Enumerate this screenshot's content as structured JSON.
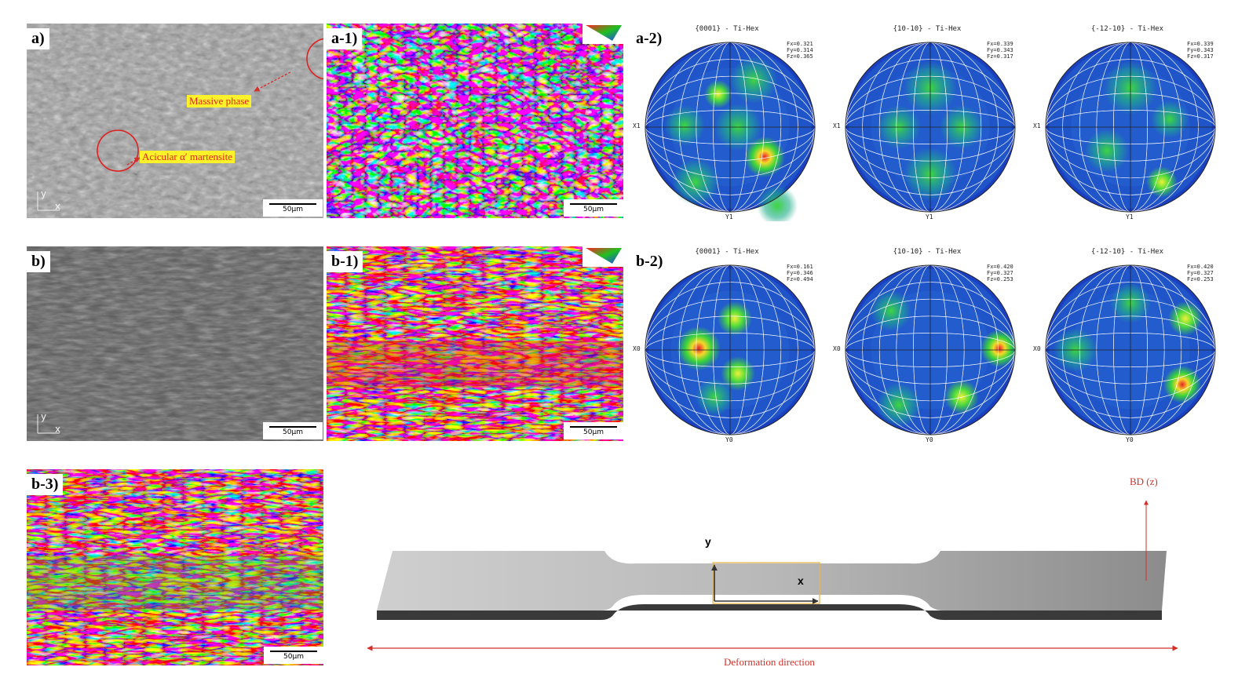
{
  "panels": {
    "a": {
      "label": "a)"
    },
    "a1": {
      "label": "a-1)"
    },
    "a2": {
      "label": "a-2)"
    },
    "b": {
      "label": "b)"
    },
    "b1": {
      "label": "b-1)"
    },
    "b2": {
      "label": "b-2)"
    },
    "b3": {
      "label": "b-3)"
    }
  },
  "scale_bar": "50µm",
  "axes": {
    "y": "y",
    "x": "x"
  },
  "annotations": {
    "massive_phase": "Massive phase",
    "acicular": "Acicular α′ martensite"
  },
  "pole_figures_a": [
    {
      "title": "{0001} - Ti-Hex",
      "stats": [
        "Fx=0.321",
        "Fy=0.314",
        "Fz=0.365"
      ],
      "left_axis": "X1",
      "bottom_axis": "Y1"
    },
    {
      "title": "{10-10} - Ti-Hex",
      "stats": [
        "Fx=0.339",
        "Fy=0.343",
        "Fz=0.317"
      ],
      "left_axis": "X1",
      "bottom_axis": "Y1"
    },
    {
      "title": "{-12-10} - Ti-Hex",
      "stats": [
        "Fx=0.339",
        "Fy=0.343",
        "Fz=0.317"
      ],
      "left_axis": "X1",
      "bottom_axis": "Y1"
    }
  ],
  "pole_figures_b": [
    {
      "title": "{0001} - Ti-Hex",
      "stats": [
        "Fx=0.161",
        "Fy=0.346",
        "Fz=0.494"
      ],
      "left_axis": "X0",
      "bottom_axis": "Y0"
    },
    {
      "title": "{10-10} - Ti-Hex",
      "stats": [
        "Fx=0.420",
        "Fy=0.327",
        "Fz=0.253"
      ],
      "left_axis": "X0",
      "bottom_axis": "Y0"
    },
    {
      "title": "{-12-10} - Ti-Hex",
      "stats": [
        "Fx=0.420",
        "Fy=0.327",
        "Fz=0.253"
      ],
      "left_axis": "X0",
      "bottom_axis": "Y0"
    }
  ],
  "specimen": {
    "bd_label": "BD (z)",
    "y_label": "y",
    "x_label": "x",
    "deformation": "Deformation direction"
  }
}
